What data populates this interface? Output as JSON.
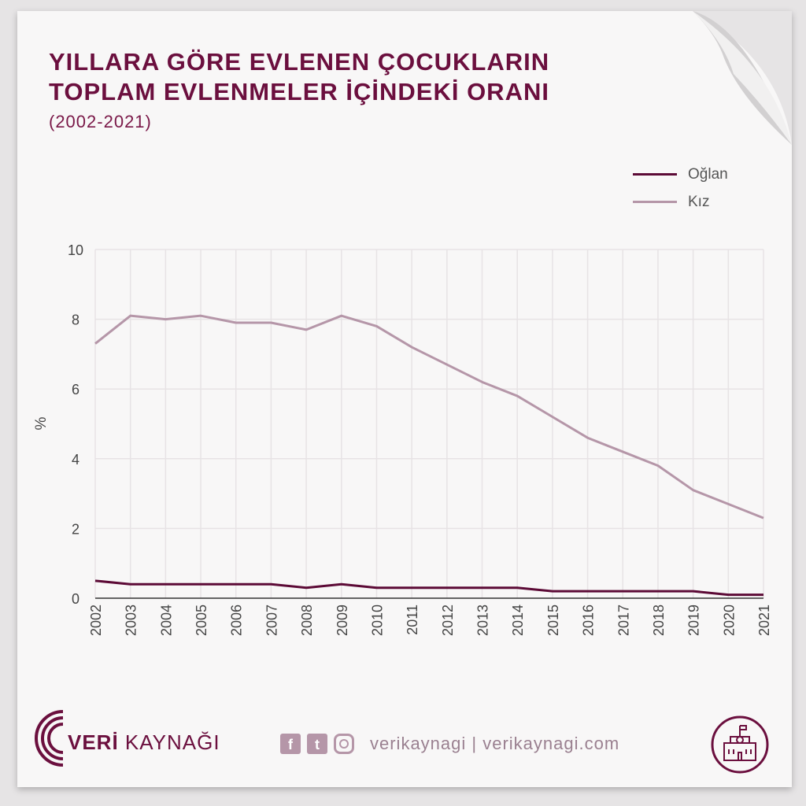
{
  "header": {
    "title_line1": "YILLARA GÖRE EVLENEN ÇOCUKLARIN",
    "title_line2": "TOPLAM EVLENMELER İÇİNDEKİ ORANI",
    "subtitle": "(2002-2021)"
  },
  "colors": {
    "background": "#f8f7f7",
    "title": "#6b0f3e",
    "oglan": "#5c0a36",
    "kiz": "#b596a8",
    "grid": "#e7e3e5"
  },
  "footer": {
    "brand_bold": "VERİ",
    "brand_rest": " KAYNAĞI",
    "url_text": "verikaynagi | verikaynagi.com",
    "icons": [
      "facebook-icon",
      "twitter-icon",
      "instagram-icon",
      "school-badge-icon"
    ]
  },
  "chart_data": {
    "type": "line",
    "x": [
      "2002",
      "2003",
      "2004",
      "2005",
      "2006",
      "2007",
      "2008",
      "2009",
      "2010",
      "2011",
      "2012",
      "2013",
      "2014",
      "2015",
      "2016",
      "2017",
      "2018",
      "2019",
      "2020",
      "2021"
    ],
    "series": [
      {
        "name": "Oğlan",
        "values": [
          0.5,
          0.4,
          0.4,
          0.4,
          0.4,
          0.4,
          0.3,
          0.4,
          0.3,
          0.3,
          0.3,
          0.3,
          0.3,
          0.2,
          0.2,
          0.2,
          0.2,
          0.2,
          0.1,
          0.1
        ]
      },
      {
        "name": "Kız",
        "values": [
          7.3,
          8.1,
          8.0,
          8.1,
          7.9,
          7.9,
          7.7,
          8.1,
          7.8,
          7.2,
          6.7,
          6.2,
          5.8,
          5.2,
          4.6,
          4.2,
          3.8,
          3.1,
          2.7,
          2.3
        ]
      }
    ],
    "ylabel": "%",
    "xlabel": "",
    "ylim": [
      0,
      10
    ],
    "yticks": [
      0,
      2,
      4,
      6,
      8,
      10
    ],
    "grid": true,
    "legend_position": "top-right"
  }
}
